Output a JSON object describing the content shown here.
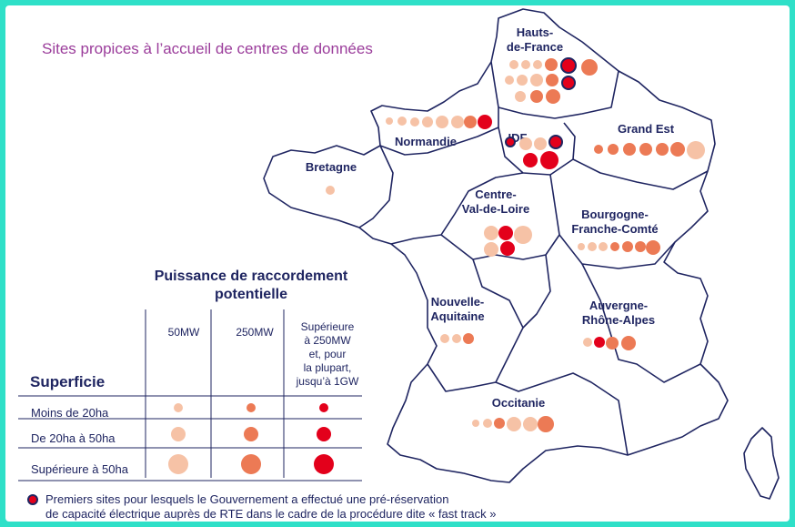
{
  "title": "Sites propices à l’accueil de centres de données",
  "regions": [
    {
      "name": "Hauts-de-France",
      "lines": [
        "Hauts-",
        "de-France"
      ]
    },
    {
      "name": "Normandie",
      "lines": [
        "Normandie"
      ]
    },
    {
      "name": "IDF",
      "lines": [
        "IDF"
      ]
    },
    {
      "name": "Grand Est",
      "lines": [
        "Grand Est"
      ]
    },
    {
      "name": "Bretagne",
      "lines": [
        "Bretagne"
      ]
    },
    {
      "name": "Centre-Val-de-Loire",
      "lines": [
        "Centre-",
        "Val-de-Loire"
      ]
    },
    {
      "name": "Bourgogne-Franche-Comté",
      "lines": [
        "Bourgogne-",
        "Franche-Comté"
      ]
    },
    {
      "name": "Nouvelle-Aquitaine",
      "lines": [
        "Nouvelle-",
        "Aquitaine"
      ]
    },
    {
      "name": "Auvergne-Rhône-Alpes",
      "lines": [
        "Auvergne-",
        "Rhône-Alpes"
      ]
    },
    {
      "name": "Occitanie",
      "lines": [
        "Occitanie"
      ]
    }
  ],
  "legend": {
    "power_title_line1": "Puissance de raccordement",
    "power_title_line2": "potentielle",
    "columns": [
      "50MW",
      "250MW"
    ],
    "column3_lines": [
      "Supérieure",
      "à 250MW",
      "et, pour",
      "la plupart,",
      "jusqu’à 1GW"
    ],
    "surface_title": "Superficie",
    "rows": [
      "Moins de 20ha",
      "De 20ha à 50ha",
      "Supérieure à 50ha"
    ],
    "colors": {
      "50MW": "#f6c2a6",
      "250MW": "#ec7a55",
      "above_250MW": "#e3001b"
    }
  },
  "footnote": {
    "line1": "Premiers sites pour lesquels le Gouvernement a effectué une pré-réservation",
    "line2": "de capacité électrique auprès de RTE dans le cadre de la procédure dite « fast track »"
  }
}
